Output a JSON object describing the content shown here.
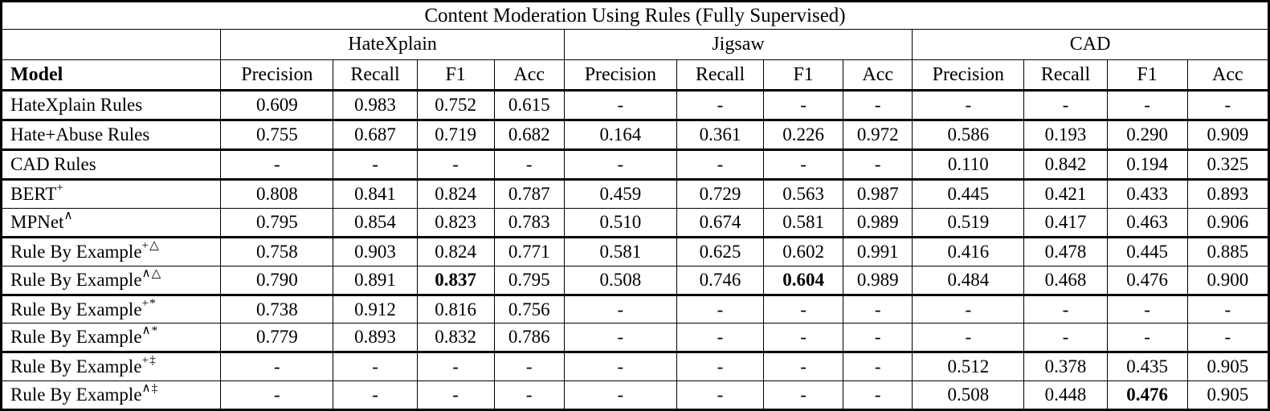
{
  "title": "Content Moderation Using Rules (Fully Supervised)",
  "table": {
    "model_header": "Model",
    "metric_headers": [
      "Precision",
      "Recall",
      "F1",
      "Acc"
    ],
    "groups": [
      {
        "label": "HateXplain"
      },
      {
        "label": "Jigsaw"
      },
      {
        "label": "CAD"
      }
    ],
    "rows": [
      {
        "model": "HateXplain Rules",
        "sup": "",
        "cells": [
          "0.609",
          "0.983",
          "0.752",
          "0.615",
          "-",
          "-",
          "-",
          "-",
          "-",
          "-",
          "-",
          "-"
        ],
        "bold": [],
        "thick_bottom": true
      },
      {
        "model": "Hate+Abuse Rules",
        "sup": "",
        "cells": [
          "0.755",
          "0.687",
          "0.719",
          "0.682",
          "0.164",
          "0.361",
          "0.226",
          "0.972",
          "0.586",
          "0.193",
          "0.290",
          "0.909"
        ],
        "bold": [],
        "thick_bottom": true
      },
      {
        "model": "CAD Rules",
        "sup": "",
        "cells": [
          "-",
          "-",
          "-",
          "-",
          "-",
          "-",
          "-",
          "-",
          "0.110",
          "0.842",
          "0.194",
          "0.325"
        ],
        "bold": [],
        "thick_bottom": true
      },
      {
        "model": "BERT",
        "sup": "+",
        "cells": [
          "0.808",
          "0.841",
          "0.824",
          "0.787",
          "0.459",
          "0.729",
          "0.563",
          "0.987",
          "0.445",
          "0.421",
          "0.433",
          "0.893"
        ],
        "bold": [],
        "thick_bottom": false
      },
      {
        "model": "MPNet",
        "sup": "∧",
        "cells": [
          "0.795",
          "0.854",
          "0.823",
          "0.783",
          "0.510",
          "0.674",
          "0.581",
          "0.989",
          "0.519",
          "0.417",
          "0.463",
          "0.906"
        ],
        "bold": [],
        "thick_bottom": true
      },
      {
        "model": "Rule By Example",
        "sup": "+△",
        "cells": [
          "0.758",
          "0.903",
          "0.824",
          "0.771",
          "0.581",
          "0.625",
          "0.602",
          "0.991",
          "0.416",
          "0.478",
          "0.445",
          "0.885"
        ],
        "bold": [],
        "thick_bottom": false
      },
      {
        "model": "Rule By Example",
        "sup": "∧△",
        "cells": [
          "0.790",
          "0.891",
          "0.837",
          "0.795",
          "0.508",
          "0.746",
          "0.604",
          "0.989",
          "0.484",
          "0.468",
          "0.476",
          "0.900"
        ],
        "bold": [
          2,
          6
        ],
        "thick_bottom": true
      },
      {
        "model": "Rule By Example",
        "sup": "+*",
        "cells": [
          "0.738",
          "0.912",
          "0.816",
          "0.756",
          "-",
          "-",
          "-",
          "-",
          "-",
          "-",
          "-",
          "-"
        ],
        "bold": [],
        "thick_bottom": false
      },
      {
        "model": "Rule By Example",
        "sup": "∧*",
        "cells": [
          "0.779",
          "0.893",
          "0.832",
          "0.786",
          "-",
          "-",
          "-",
          "-",
          "-",
          "-",
          "-",
          "-"
        ],
        "bold": [],
        "thick_bottom": true
      },
      {
        "model": "Rule By Example",
        "sup": "+‡",
        "cells": [
          "-",
          "-",
          "-",
          "-",
          "-",
          "-",
          "-",
          "-",
          "0.512",
          "0.378",
          "0.435",
          "0.905"
        ],
        "bold": [],
        "thick_bottom": false
      },
      {
        "model": "Rule By Example",
        "sup": "∧‡",
        "cells": [
          "-",
          "-",
          "-",
          "-",
          "-",
          "-",
          "-",
          "-",
          "0.508",
          "0.448",
          "0.476",
          "0.905"
        ],
        "bold": [
          10
        ],
        "thick_bottom": false
      }
    ]
  }
}
